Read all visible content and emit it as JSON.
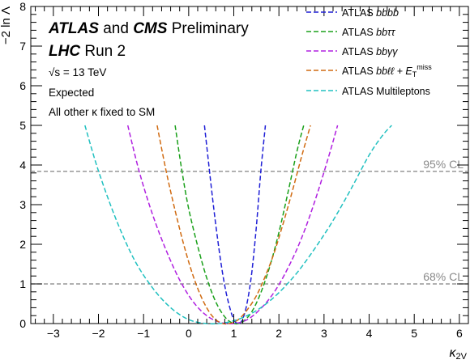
{
  "chart_data": {
    "type": "line",
    "xlabel": "κ_2V",
    "ylabel": "−2 ln Λ",
    "xlim": [
      -3.5,
      6.2
    ],
    "ylim": [
      0,
      8
    ],
    "xticks": [
      -3,
      -2,
      -1,
      0,
      1,
      2,
      3,
      4,
      5,
      6
    ],
    "yticks": [
      0,
      1,
      2,
      3,
      4,
      5,
      6,
      7,
      8
    ],
    "experiment_text": {
      "atlas": "ATLAS",
      "and": "and",
      "cms": "CMS",
      "preliminary": "Preliminary",
      "lhc": "LHC",
      "run": "Run 2",
      "energy": "√s = 13 TeV",
      "expected": "Expected",
      "note": "All other κ fixed to SM"
    },
    "reference_lines": [
      {
        "y": 3.84,
        "label": "95% CL"
      },
      {
        "y": 1.0,
        "label": "68% CL"
      }
    ],
    "legend_position": "top-right",
    "series": [
      {
        "name": "ATLAS bbbb",
        "name_prefix": "ATLAS ",
        "name_italic": "bbbb",
        "name_suffix": "",
        "color": "#1f1fd6",
        "x": [
          0.35,
          0.5,
          0.6,
          0.7,
          0.8,
          0.9,
          1.0,
          1.1,
          1.2,
          1.3,
          1.4,
          1.5,
          1.6,
          1.7
        ],
        "y": [
          5.0,
          3.45,
          2.5,
          1.65,
          0.95,
          0.45,
          0.1,
          0.0,
          0.12,
          0.55,
          1.3,
          2.45,
          3.85,
          5.0
        ]
      },
      {
        "name": "ATLAS bbττ",
        "name_prefix": "ATLAS ",
        "name_italic": "bbττ",
        "name_suffix": "",
        "color": "#1aa01a",
        "x": [
          -0.3,
          -0.15,
          0.0,
          0.2,
          0.4,
          0.6,
          0.8,
          1.0,
          1.2,
          1.4,
          1.6,
          1.8,
          2.0,
          2.2,
          2.4,
          2.55
        ],
        "y": [
          5.0,
          3.85,
          2.9,
          1.95,
          1.15,
          0.55,
          0.17,
          0.0,
          0.05,
          0.3,
          0.78,
          1.45,
          2.3,
          3.3,
          4.35,
          5.0
        ]
      },
      {
        "name": "ATLAS bbγγ",
        "name_prefix": "ATLAS ",
        "name_italic": "bbγγ",
        "name_suffix": "",
        "color": "#b020e0",
        "x": [
          -1.35,
          -1.1,
          -0.8,
          -0.5,
          -0.2,
          0.1,
          0.4,
          0.7,
          1.0,
          1.3,
          1.6,
          1.9,
          2.2,
          2.5,
          2.8,
          3.1,
          3.3
        ],
        "y": [
          5.0,
          3.85,
          2.75,
          1.85,
          1.1,
          0.55,
          0.2,
          0.03,
          0.0,
          0.1,
          0.38,
          0.8,
          1.4,
          2.15,
          3.1,
          4.2,
          5.0
        ]
      },
      {
        "name": "ATLAS bbℓℓ + E_T^miss",
        "name_prefix": "ATLAS ",
        "name_italic": "bbℓℓ",
        "name_suffix": " + E",
        "color": "#d06a10",
        "x": [
          -0.7,
          -0.5,
          -0.3,
          -0.1,
          0.1,
          0.3,
          0.5,
          0.7,
          0.9,
          1.1,
          1.3,
          1.5,
          1.7,
          1.9,
          2.1,
          2.3,
          2.5,
          2.7
        ],
        "y": [
          5.0,
          3.85,
          2.85,
          1.95,
          1.2,
          0.62,
          0.22,
          0.02,
          0.0,
          0.1,
          0.35,
          0.7,
          1.2,
          1.8,
          2.55,
          3.35,
          4.2,
          5.0
        ]
      },
      {
        "name": "ATLAS Multileptons",
        "name_prefix": "ATLAS Multileptons",
        "name_italic": "",
        "name_suffix": "",
        "color": "#20c0c0",
        "x": [
          -2.3,
          -2.0,
          -1.6,
          -1.2,
          -0.8,
          -0.4,
          0.0,
          0.4,
          0.8,
          1.2,
          1.6,
          2.0,
          2.4,
          2.8,
          3.2,
          3.6,
          4.0,
          4.3,
          4.5
        ],
        "y": [
          5.0,
          3.85,
          2.6,
          1.6,
          0.9,
          0.4,
          0.1,
          0.0,
          0.02,
          0.15,
          0.4,
          0.78,
          1.28,
          1.9,
          2.6,
          3.4,
          4.25,
          4.75,
          5.0
        ]
      }
    ]
  }
}
